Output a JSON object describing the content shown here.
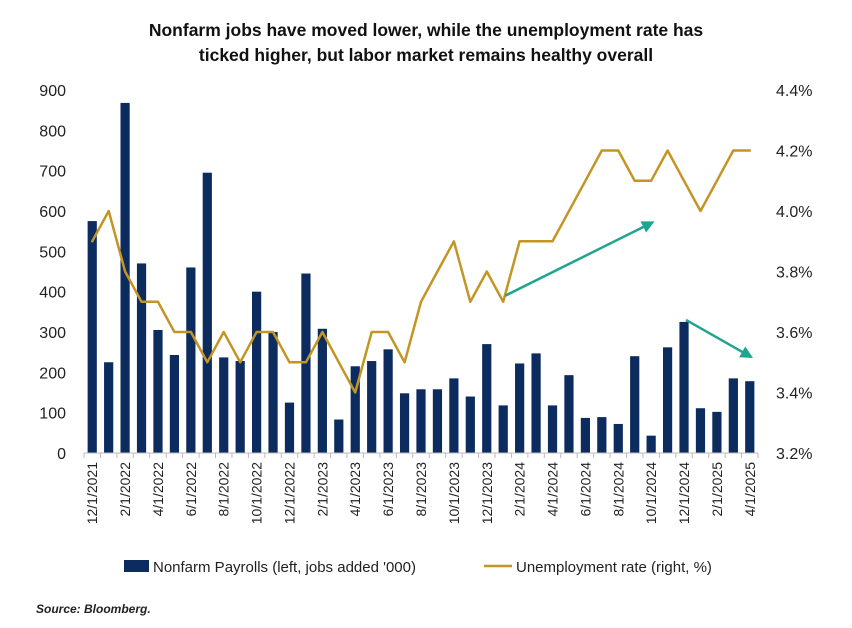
{
  "chart_data": {
    "type": "bar+line",
    "title_line1": "Nonfarm jobs have moved lower, while the unemployment rate has",
    "title_line2": "ticked higher, but labor market remains healthy overall",
    "source": "Source: Bloomberg.",
    "categories": [
      "12/1/2021",
      "1/1/2022",
      "2/1/2022",
      "3/1/2022",
      "4/1/2022",
      "5/1/2022",
      "6/1/2022",
      "7/1/2022",
      "8/1/2022",
      "9/1/2022",
      "10/1/2022",
      "11/1/2022",
      "12/1/2022",
      "1/1/2023",
      "2/1/2023",
      "3/1/2023",
      "4/1/2023",
      "5/1/2023",
      "6/1/2023",
      "7/1/2023",
      "8/1/2023",
      "9/1/2023",
      "10/1/2023",
      "11/1/2023",
      "12/1/2023",
      "1/1/2024",
      "2/1/2024",
      "3/1/2024",
      "4/1/2024",
      "5/1/2024",
      "6/1/2024",
      "7/1/2024",
      "8/1/2024",
      "9/1/2024",
      "10/1/2024",
      "11/1/2024",
      "12/1/2024",
      "1/1/2025",
      "2/1/2025",
      "3/1/2025",
      "4/1/2025"
    ],
    "x_tick_labels": [
      "12/1/2021",
      "2/1/2022",
      "4/1/2022",
      "6/1/2022",
      "8/1/2022",
      "10/1/2022",
      "12/1/2022",
      "2/1/2023",
      "4/1/2023",
      "6/1/2023",
      "8/1/2023",
      "10/1/2023",
      "12/1/2023",
      "2/1/2024",
      "4/1/2024",
      "6/1/2024",
      "8/1/2024",
      "10/1/2024",
      "12/1/2024",
      "2/1/2025",
      "4/1/2025"
    ],
    "series": [
      {
        "name": "Nonfarm Payrolls (left, jobs added '000)",
        "type": "bar",
        "axis": "left",
        "color": "#0c2b5e",
        "values": [
          575,
          225,
          868,
          470,
          305,
          243,
          460,
          695,
          237,
          228,
          400,
          300,
          125,
          445,
          308,
          83,
          215,
          228,
          257,
          148,
          158,
          158,
          185,
          140,
          270,
          118,
          222,
          247,
          118,
          193,
          87,
          89,
          72,
          240,
          43,
          262,
          325,
          111,
          102,
          185,
          178
        ]
      },
      {
        "name": "Unemployment rate (right, %)",
        "type": "line",
        "axis": "right",
        "color": "#c39524",
        "values": [
          3.9,
          4.0,
          3.8,
          3.7,
          3.7,
          3.6,
          3.6,
          3.5,
          3.6,
          3.5,
          3.6,
          3.6,
          3.5,
          3.5,
          3.6,
          3.5,
          3.4,
          3.6,
          3.6,
          3.5,
          3.7,
          3.8,
          3.9,
          3.7,
          3.8,
          3.7,
          3.9,
          3.9,
          3.9,
          4.0,
          4.1,
          4.2,
          4.2,
          4.1,
          4.1,
          4.2,
          4.1,
          4.0,
          4.1,
          4.2,
          4.2
        ]
      }
    ],
    "y_left": {
      "min": 0,
      "max": 900,
      "ticks": [
        "0",
        "100",
        "200",
        "300",
        "400",
        "500",
        "600",
        "700",
        "800",
        "900"
      ]
    },
    "y_right": {
      "min": 3.2,
      "max": 4.4,
      "ticks": [
        "3.2%",
        "3.4%",
        "3.6%",
        "3.8%",
        "4.0%",
        "4.2%",
        "4.4%"
      ]
    },
    "grid": false,
    "legend_position": "bottom",
    "annotations": [
      {
        "type": "arrow",
        "color": "#1fa58f",
        "direction": "up",
        "from": [
          "1/1/2024",
          3.72
        ],
        "to": [
          "10/1/2024",
          3.96
        ]
      },
      {
        "type": "arrow",
        "color": "#1fa58f",
        "direction": "down",
        "from": [
          "12/1/2024",
          3.64
        ],
        "to": [
          "4/1/2025",
          3.52
        ]
      }
    ]
  }
}
